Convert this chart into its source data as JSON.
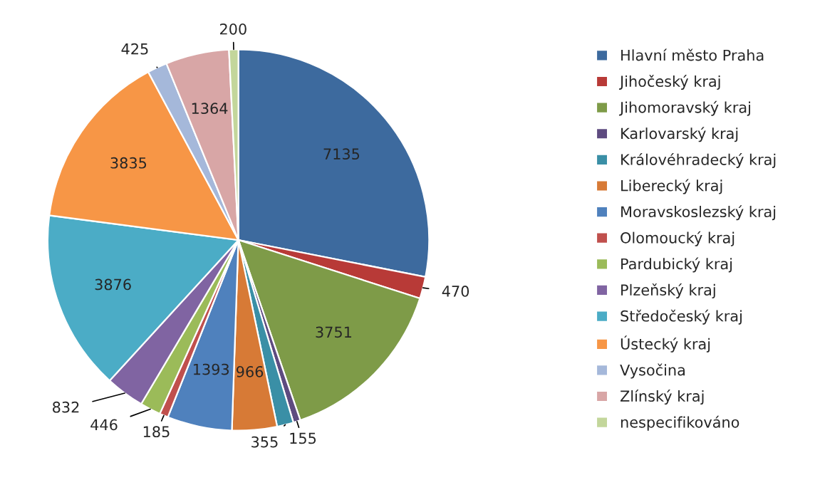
{
  "chart_data": {
    "type": "pie",
    "categories": [
      "Hlavní město Praha",
      "Jihočeský kraj",
      "Jihomoravský kraj",
      "Karlovarský kraj",
      "Královéhradecký kraj",
      "Liberecký kraj",
      "Moravskoslezský kraj",
      "Olomoucký kraj",
      "Pardubický kraj",
      "Plzeňský kraj",
      "Středočeský kraj",
      "Ústecký kraj",
      "Vysočina",
      "Zlínský kraj",
      "nespecifikováno"
    ],
    "values": [
      7135,
      470,
      3751,
      155,
      355,
      966,
      1393,
      185,
      446,
      832,
      3876,
      3835,
      425,
      1364,
      200
    ],
    "colors": [
      "#3d6a9e",
      "#b83a37",
      "#7e9b48",
      "#5e4b80",
      "#3a8fa6",
      "#d77a36",
      "#4f81bd",
      "#c0504d",
      "#9bbb59",
      "#8064a2",
      "#4bacc6",
      "#f79646",
      "#a5b8da",
      "#d8a6a6",
      "#c3d69b"
    ],
    "data_labels": true,
    "legend": "right"
  }
}
